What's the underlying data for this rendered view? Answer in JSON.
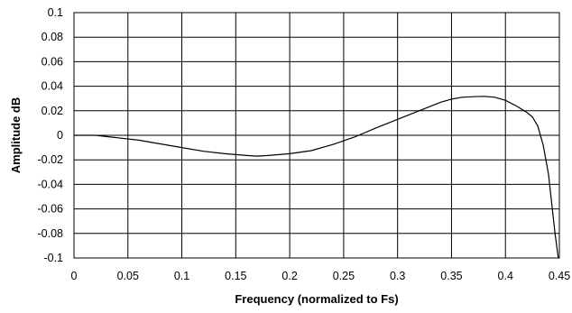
{
  "chart_data": {
    "type": "line",
    "title": "",
    "xlabel": "Frequency (normalized to Fs)",
    "ylabel": "Amplitude dB",
    "xlim": [
      0,
      0.45
    ],
    "ylim": [
      -0.1,
      0.1
    ],
    "grid": true,
    "legend": "none",
    "x_ticks": [
      0,
      0.05,
      0.1,
      0.15,
      0.2,
      0.25,
      0.3,
      0.35,
      0.4,
      0.45
    ],
    "x_tick_labels": [
      "0",
      "0.05",
      "0.1",
      "0.15",
      "0.2",
      "0.25",
      "0.3",
      "0.35",
      "0.4",
      "0.45"
    ],
    "y_ticks": [
      -0.1,
      -0.08,
      -0.06,
      -0.04,
      -0.02,
      0,
      0.02,
      0.04,
      0.06,
      0.08,
      0.1
    ],
    "y_tick_labels": [
      "-0.1",
      "-0.08",
      "-0.06",
      "-0.04",
      "-0.02",
      "0",
      "0.02",
      "0.04",
      "0.06",
      "0.08",
      "0.1"
    ],
    "colors": {
      "line": "#000000",
      "grid": "#000000",
      "background": "#ffffff"
    },
    "series": [
      {
        "x": [
          0,
          0.02,
          0.04,
          0.06,
          0.08,
          0.1,
          0.12,
          0.14,
          0.16,
          0.17,
          0.18,
          0.2,
          0.22,
          0.24,
          0.26,
          0.28,
          0.3,
          0.32,
          0.34,
          0.35,
          0.36,
          0.37,
          0.38,
          0.39,
          0.4,
          0.41,
          0.42,
          0.425,
          0.43,
          0.435,
          0.44,
          0.443,
          0.446,
          0.449
        ],
        "values": [
          0,
          0,
          -0.002,
          -0.004,
          -0.007,
          -0.01,
          -0.013,
          -0.015,
          -0.0165,
          -0.017,
          -0.0165,
          -0.015,
          -0.0125,
          -0.0075,
          -0.0015,
          0.006,
          0.013,
          0.02,
          0.027,
          0.0295,
          0.031,
          0.0315,
          0.0318,
          0.031,
          0.0285,
          0.024,
          0.0185,
          0.015,
          0.0075,
          -0.008,
          -0.032,
          -0.056,
          -0.08,
          -0.1
        ]
      }
    ]
  }
}
